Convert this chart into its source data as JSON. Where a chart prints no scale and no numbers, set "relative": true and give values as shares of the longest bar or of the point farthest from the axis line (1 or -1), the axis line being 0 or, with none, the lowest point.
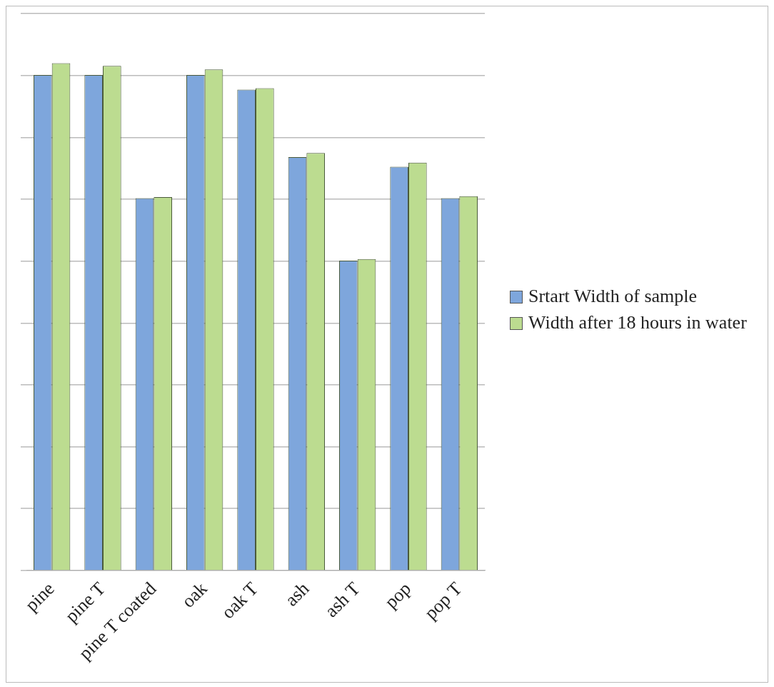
{
  "chart_data": {
    "type": "bar",
    "relative": true,
    "categories": [
      "pine",
      "pine T",
      "pine T coated",
      "oak",
      "oak T",
      "ash",
      "ash T",
      "pop",
      "pop T"
    ],
    "series": [
      {
        "name": "Srtart Width of sample",
        "color": "#7ea6dc",
        "values": [
          0.977,
          0.977,
          0.734,
          0.977,
          0.948,
          0.815,
          0.611,
          0.796,
          0.734
        ]
      },
      {
        "name": "Width after 18 hours in water",
        "color": "#bcdc90",
        "values": [
          1,
          0.995,
          0.736,
          0.988,
          0.951,
          0.823,
          0.614,
          0.804,
          0.738
        ]
      }
    ],
    "grid": "y",
    "legend": "right"
  }
}
